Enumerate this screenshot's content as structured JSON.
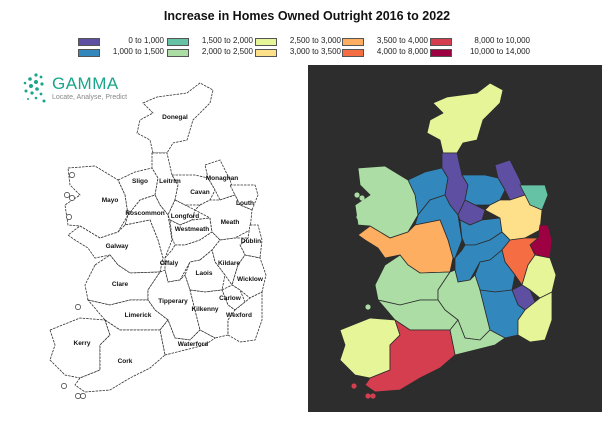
{
  "title": "Increase in Homes Owned Outright 2016 to 2022",
  "logo": {
    "name": "GAMMA",
    "tagline": "Locate, Analyse, Predict"
  },
  "legend": [
    {
      "label": "0 to  1,000",
      "color": "#5e4fa2"
    },
    {
      "label": "1,000 to  1,500",
      "color": "#3288bd"
    },
    {
      "label": "1,500 to  2,000",
      "color": "#66c2a5"
    },
    {
      "label": "2,000 to  2,500",
      "color": "#abdda4"
    },
    {
      "label": "2,500 to  3,000",
      "color": "#e6f598"
    },
    {
      "label": "3,000 to  3,500",
      "color": "#fee08b"
    },
    {
      "label": "3,500 to  4,000",
      "color": "#fdae61"
    },
    {
      "label": "4,000 to  8,000",
      "color": "#f46d43"
    },
    {
      "label": "8,000 to 10,000",
      "color": "#d53e4f"
    },
    {
      "label": "10,000 to 14,000",
      "color": "#9e0142"
    }
  ],
  "counties": [
    {
      "name": "Donegal",
      "bin": 4
    },
    {
      "name": "Sligo",
      "bin": 1
    },
    {
      "name": "Leitrim",
      "bin": 0
    },
    {
      "name": "Monaghan",
      "bin": 0
    },
    {
      "name": "Cavan",
      "bin": 1
    },
    {
      "name": "Louth",
      "bin": 2
    },
    {
      "name": "Mayo",
      "bin": 3
    },
    {
      "name": "Roscommon",
      "bin": 1
    },
    {
      "name": "Longford",
      "bin": 0
    },
    {
      "name": "Westmeath",
      "bin": 1
    },
    {
      "name": "Meath",
      "bin": 5
    },
    {
      "name": "Dublin",
      "bin": 9
    },
    {
      "name": "Galway",
      "bin": 6
    },
    {
      "name": "Offaly",
      "bin": 1
    },
    {
      "name": "Kildare",
      "bin": 7
    },
    {
      "name": "Laois",
      "bin": 1
    },
    {
      "name": "Wicklow",
      "bin": 4
    },
    {
      "name": "Carlow",
      "bin": 0
    },
    {
      "name": "Clare",
      "bin": 3
    },
    {
      "name": "Tipperary",
      "bin": 3
    },
    {
      "name": "Kilkenny",
      "bin": 1
    },
    {
      "name": "Wexford",
      "bin": 4
    },
    {
      "name": "Limerick",
      "bin": 3
    },
    {
      "name": "Waterford",
      "bin": 3
    },
    {
      "name": "Kerry",
      "bin": 4
    },
    {
      "name": "Cork",
      "bin": 8
    }
  ],
  "colors": {
    "panel_background": "#2d2d2d",
    "outline": "#333333"
  }
}
